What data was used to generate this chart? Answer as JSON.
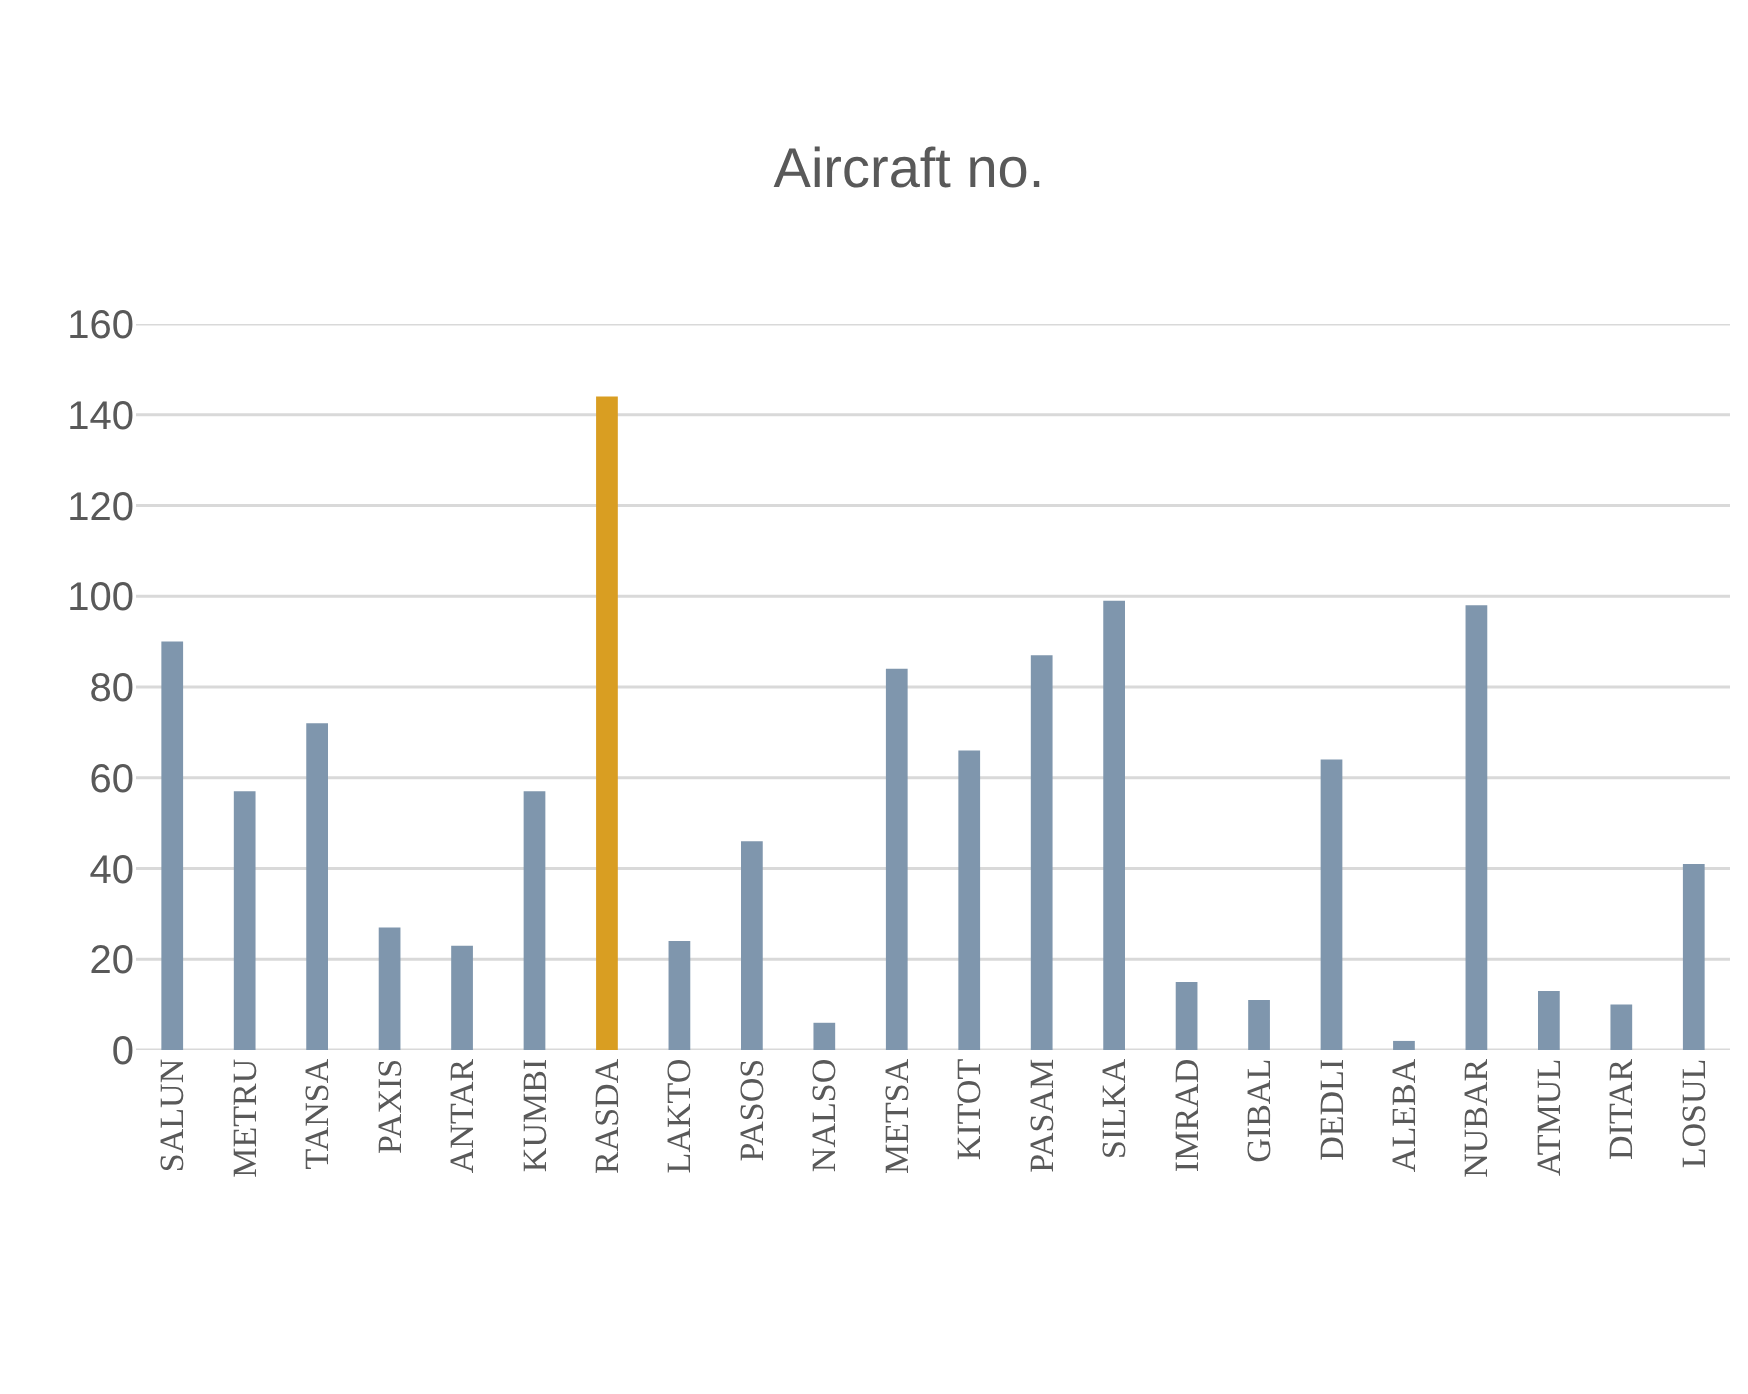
{
  "chart_data": {
    "type": "bar",
    "title": "Aircraft no.",
    "categories": [
      "SALUN",
      "METRU",
      "TANSA",
      "PAXIS",
      "ANTAR",
      "KUMBI",
      "RASDA",
      "LAKTO",
      "PASOS",
      "NALSO",
      "METSA",
      "KITOT",
      "PASAM",
      "SILKA",
      "IMRAD",
      "GIBAL",
      "DEDLI",
      "ALEBA",
      "NUBAR",
      "ATMUL",
      "DITAR",
      "LOSUL"
    ],
    "values": [
      90,
      57,
      72,
      27,
      23,
      57,
      144,
      24,
      46,
      6,
      84,
      66,
      87,
      99,
      15,
      11,
      64,
      2,
      98,
      13,
      10,
      41
    ],
    "colors": [
      "#7f96ad",
      "#7f96ad",
      "#7f96ad",
      "#7f96ad",
      "#7f96ad",
      "#7f96ad",
      "#d99e22",
      "#7f96ad",
      "#7f96ad",
      "#7f96ad",
      "#7f96ad",
      "#7f96ad",
      "#7f96ad",
      "#7f96ad",
      "#7f96ad",
      "#7f96ad",
      "#7f96ad",
      "#7f96ad",
      "#7f96ad",
      "#7f96ad",
      "#7f96ad",
      "#7f96ad"
    ],
    "ylim": [
      0,
      160
    ],
    "yticks": [
      0,
      20,
      40,
      60,
      80,
      100,
      120,
      140,
      160
    ],
    "grid": "y"
  }
}
